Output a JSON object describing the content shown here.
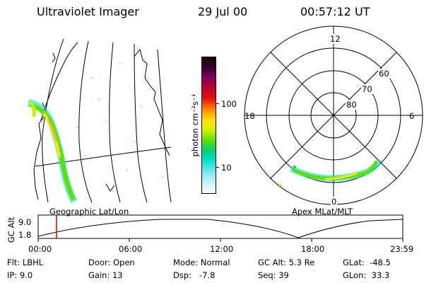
{
  "header": {
    "title": "Ultraviolet Imager",
    "date": "29 Jul 00",
    "time": "00:57:12 UT"
  },
  "colorbar": {
    "unit_label": "photon cm⁻²s⁻¹",
    "tick_100": "100",
    "tick_10": "10"
  },
  "polar": {
    "mlt_12": "12",
    "mlt_18": "18",
    "mlt_6": "6",
    "mlt_0": "0",
    "lat_60": "60",
    "lat_70": "70",
    "lat_80": "80"
  },
  "panel_labels": {
    "left": "Geographic Lat/Lon",
    "right": "Apex MLat/MLT"
  },
  "altplot": {
    "ylabel": "GC Alt",
    "y_top": "9.0",
    "y_bottom": "1.8",
    "x_ticks": [
      "00:00",
      "06:00",
      "12:00",
      "18:00",
      "23:59"
    ]
  },
  "info": {
    "flt": "Flt: LBHL",
    "ip": "IP: 9.0",
    "door": "Door: Open",
    "gain": "Gain: 13",
    "mode": "Mode: Normal",
    "dsp": "Dsp:   -7.8",
    "gcalt": "GC Alt: 5.3 Re",
    "seq": "Seq: 39",
    "glat": "GLat:  -48.5",
    "glon": "GLon:  33.3"
  }
}
